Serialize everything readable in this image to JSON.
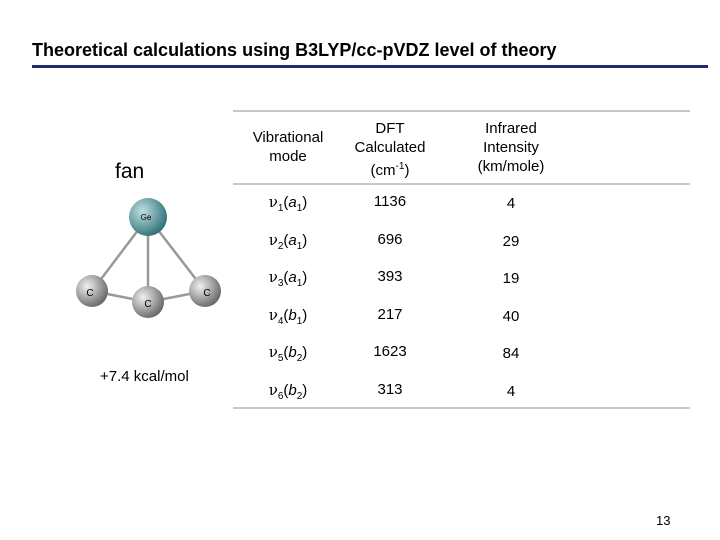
{
  "header": {
    "title": "Theoretical calculations using B3LYP/cc-pVDZ level of theory"
  },
  "structure": {
    "name": "fan",
    "energy": "+7.4 kcal/mol",
    "atoms": [
      "Ge",
      "C",
      "C",
      "C"
    ]
  },
  "table": {
    "columns": [
      {
        "lines": [
          "Vibrational",
          "mode"
        ]
      },
      {
        "lines": [
          "DFT",
          "Calculated"
        ],
        "unit": "(cm",
        "unit_exp": "-1",
        "unit_close": ")"
      },
      {
        "lines": [
          "Infrared",
          "Intensity",
          "(km/mole)"
        ]
      }
    ],
    "rows": [
      {
        "symbol": "ν",
        "index": "1",
        "irrep": "a",
        "irrep_index": "1",
        "frequency": 1136,
        "intensity": 4
      },
      {
        "symbol": "ν",
        "index": "2",
        "irrep": "a",
        "irrep_index": "1",
        "frequency": 696,
        "intensity": 29
      },
      {
        "symbol": "ν",
        "index": "3",
        "irrep": "a",
        "irrep_index": "1",
        "frequency": 393,
        "intensity": 19
      },
      {
        "symbol": "ν",
        "index": "4",
        "irrep": "b",
        "irrep_index": "1",
        "frequency": 217,
        "intensity": 40
      },
      {
        "symbol": "ν",
        "index": "5",
        "irrep": "b",
        "irrep_index": "2",
        "frequency": 1623,
        "intensity": 84
      },
      {
        "symbol": "ν",
        "index": "6",
        "irrep": "b",
        "irrep_index": "2",
        "frequency": 313,
        "intensity": 4
      }
    ]
  },
  "footer": {
    "page": "13"
  }
}
